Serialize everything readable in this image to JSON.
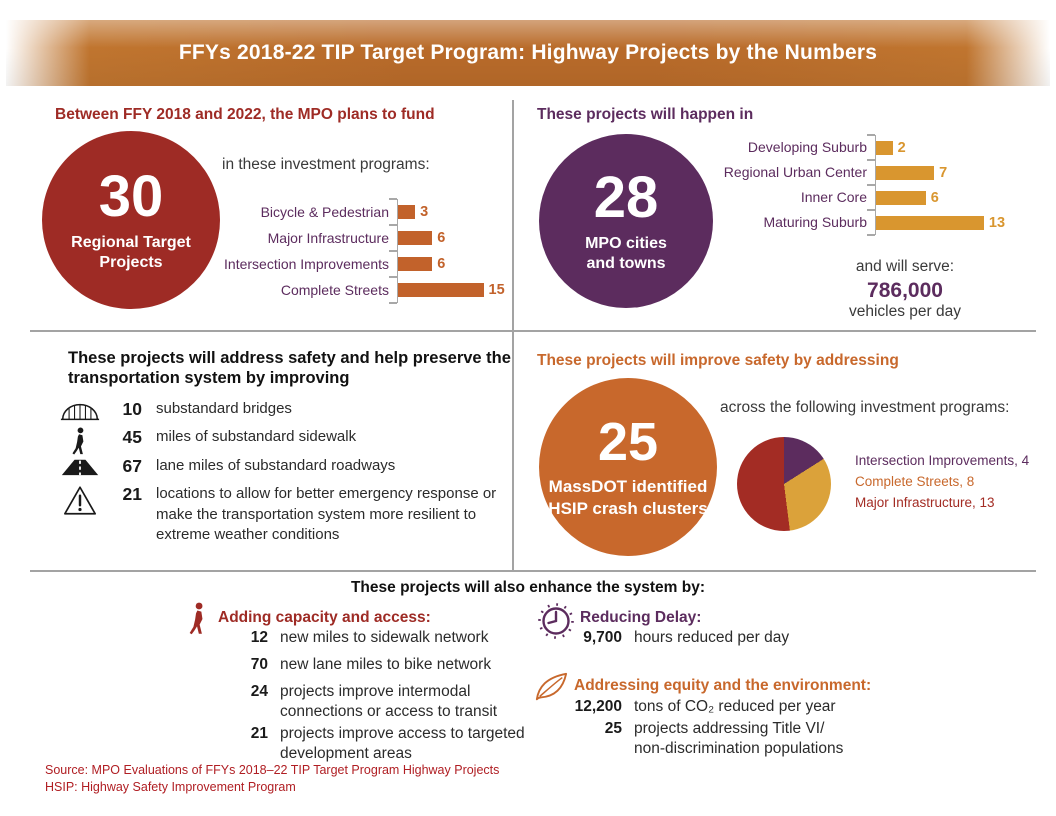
{
  "header": {
    "title": "FFYs 2018-22 TIP Target Program: Highway Projects by the Numbers"
  },
  "colors": {
    "dark_red": "#9e2b25",
    "purple": "#5c2c5e",
    "orange": "#c8682c",
    "bar_orange": "#c2622b",
    "bar_amber": "#d9962f",
    "pie_amber": "#dba23a",
    "footer_red": "#b01e23",
    "divider_gray": "#a3a3a3",
    "banner_orange": "#b96b2a"
  },
  "funding": {
    "heading": "Between FFY 2018 and 2022, the MPO plans to fund",
    "stat_value": "30",
    "stat_label": "Regional Target Projects",
    "intro": "in these investment programs:"
  },
  "locations": {
    "heading": "These projects will happen in",
    "stat_value": "28",
    "stat_label": "MPO cities and towns",
    "serve_intro": "and will serve:",
    "serve_value": "786,000",
    "serve_unit": "vehicles per day"
  },
  "preservation": {
    "heading": "These projects will address safety and help preserve the transportation system by improving",
    "items": [
      {
        "icon": "bridge-icon",
        "value": "10",
        "text": "substandard bridges"
      },
      {
        "icon": "pedestrian-icon",
        "value": "45",
        "text": "miles of substandard sidewalk"
      },
      {
        "icon": "road-icon",
        "value": "67",
        "text": "lane miles of substandard roadways"
      },
      {
        "icon": "warning-icon",
        "value": "21",
        "text": "locations to allow for better emergency response or make the transportation system more resilient to extreme weather conditions"
      }
    ]
  },
  "crash": {
    "heading": "These projects will improve safety by addressing",
    "stat_value": "25",
    "stat_label": "MassDOT identified HSIP crash clusters",
    "intro": "across the following investment programs:"
  },
  "enhance": {
    "heading": "These projects will also enhance the system by:",
    "capacity": {
      "icon": "walker-icon",
      "title": "Adding capacity and access:",
      "items": [
        {
          "value": "12",
          "text": "new miles to sidewalk network"
        },
        {
          "value": "70",
          "text": "new lane miles to bike network"
        },
        {
          "value": "24",
          "text": "projects improve intermodal connections or access to transit"
        },
        {
          "value": "21",
          "text": "projects improve access to targeted development areas"
        }
      ]
    },
    "delay": {
      "icon": "clock-icon",
      "title": "Reducing Delay:",
      "items": [
        {
          "value": "9,700",
          "text": "hours reduced per day"
        }
      ]
    },
    "equity": {
      "icon": "leaf-icon",
      "title": "Addressing equity and the environment:",
      "items": [
        {
          "value": "12,200",
          "text": "tons of CO₂ reduced per year"
        },
        {
          "value": "25",
          "text": "projects addressing Title VI/ non-discrimination populations"
        }
      ]
    }
  },
  "footer": {
    "source": "Source: MPO Evaluations of FFYs 2018–22 TIP Target Program Highway Projects",
    "note": "HSIP: Highway Safety Improvement Program"
  },
  "chart_data": [
    {
      "type": "bar",
      "orientation": "horizontal",
      "title": "in these investment programs:",
      "categories": [
        "Bicycle & Pedestrian",
        "Major Infrastructure",
        "Intersection Improvements",
        "Complete Streets"
      ],
      "values": [
        3,
        6,
        6,
        15
      ],
      "bar_color": "#c2622b",
      "label_color": "#5c2c5e",
      "grid": false,
      "value_labels": true
    },
    {
      "type": "bar",
      "orientation": "horizontal",
      "title": "These projects will happen in",
      "categories": [
        "Developing Suburb",
        "Regional Urban Center",
        "Inner Core",
        "Maturing Suburb"
      ],
      "values": [
        2,
        7,
        6,
        13
      ],
      "bar_color": "#d9962f",
      "label_color": "#5c2c5e",
      "grid": false,
      "value_labels": true
    },
    {
      "type": "pie",
      "title": "across the following investment programs:",
      "categories": [
        "Intersection Improvements",
        "Complete Streets",
        "Major Infrastructure"
      ],
      "values": [
        4,
        8,
        13
      ],
      "colors": [
        "#5c2c5e",
        "#dba23a",
        "#a32c24"
      ],
      "legend_colors": [
        "#5c2c5e",
        "#c8682c",
        "#a32c24"
      ],
      "legend_position": "right",
      "start_angle": 0
    }
  ]
}
